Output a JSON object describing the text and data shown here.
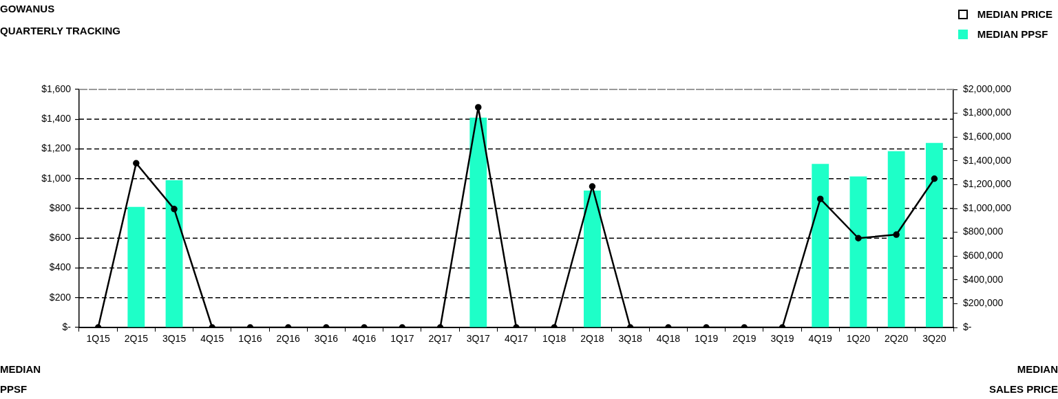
{
  "chart_data": {
    "type": "bar",
    "title": "GOWANUS",
    "subtitle": "QUARTERLY TRACKING",
    "ylabel": "MEDIAN PPSF",
    "y2label": "MEDIAN SALES PRICE",
    "categories": [
      "1Q15",
      "2Q15",
      "3Q15",
      "4Q15",
      "1Q16",
      "2Q16",
      "3Q16",
      "4Q16",
      "1Q17",
      "2Q17",
      "3Q17",
      "4Q17",
      "1Q18",
      "2Q18",
      "3Q18",
      "4Q18",
      "1Q19",
      "2Q19",
      "3Q19",
      "4Q19",
      "1Q20",
      "2Q20",
      "3Q20"
    ],
    "series": [
      {
        "name": "MEDIAN PRICE",
        "type": "line",
        "axis": "y2",
        "color": "#000000",
        "values": [
          0,
          1380000,
          995000,
          0,
          0,
          0,
          0,
          0,
          0,
          0,
          1850000,
          0,
          0,
          1185000,
          0,
          0,
          0,
          0,
          0,
          1080000,
          750000,
          780000,
          1250000
        ]
      },
      {
        "name": "MEDIAN PPSF",
        "color": "#1effc8",
        "values": [
          0,
          810,
          990,
          0,
          0,
          0,
          0,
          0,
          0,
          0,
          1410,
          0,
          0,
          920,
          0,
          0,
          0,
          0,
          0,
          1100,
          1015,
          1185,
          1240
        ]
      }
    ],
    "ylim": [
      0,
      1600
    ],
    "yticks": [
      {
        "value": 0,
        "label": "$-"
      },
      {
        "value": 200,
        "label": "$200"
      },
      {
        "value": 400,
        "label": "$400"
      },
      {
        "value": 600,
        "label": "$600"
      },
      {
        "value": 800,
        "label": "$800"
      },
      {
        "value": 1000,
        "label": "$1,000"
      },
      {
        "value": 1200,
        "label": "$1,200"
      },
      {
        "value": 1400,
        "label": "$1,400"
      },
      {
        "value": 1600,
        "label": "$1,600"
      }
    ],
    "y2lim": [
      0,
      2000000
    ],
    "y2ticks": [
      {
        "value": 0,
        "label": "$-"
      },
      {
        "value": 200000,
        "label": "$200,000"
      },
      {
        "value": 400000,
        "label": "$400,000"
      },
      {
        "value": 600000,
        "label": "$600,000"
      },
      {
        "value": 800000,
        "label": "$800,000"
      },
      {
        "value": 1000000,
        "label": "$1,000,000"
      },
      {
        "value": 1200000,
        "label": "$1,200,000"
      },
      {
        "value": 1400000,
        "label": "$1,400,000"
      },
      {
        "value": 1600000,
        "label": "$1,600,000"
      },
      {
        "value": 1800000,
        "label": "$1,800,000"
      },
      {
        "value": 2000000,
        "label": "$2,000,000"
      }
    ],
    "grid": "y",
    "legend": "top right",
    "marker": "circle"
  }
}
